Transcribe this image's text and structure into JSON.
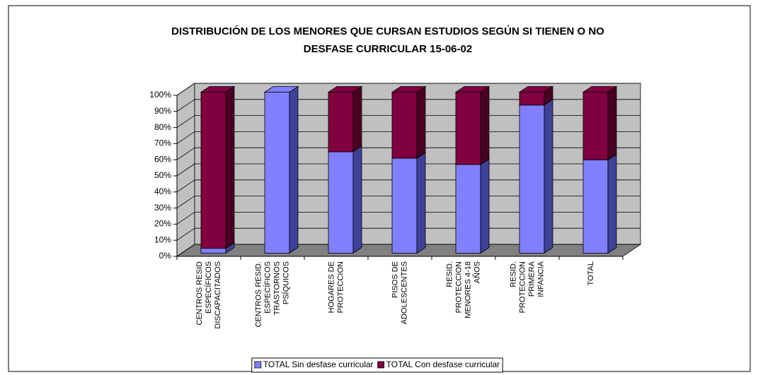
{
  "chart_data": {
    "type": "bar3d_stacked100",
    "title": [
      "DISTRIBUCIÓN DE LOS MENORES QUE CURSAN ESTUDIOS SEGÚN SI TIENEN O NO",
      "DESFASE CURRICULAR 15-06-02"
    ],
    "categories": [
      [
        "CENTROS RESID",
        "ESPECÍFICOS",
        "DISCAPACITADOS"
      ],
      [
        "CENTROS RESID.",
        "ESPECÍFICOS",
        "TRASTORNOS",
        "PSÍQUICOS"
      ],
      [
        "HOGARES DE",
        "PROTECCION"
      ],
      [
        "PISOS DE",
        "ADOLESCENTES"
      ],
      [
        "RESID.",
        "PROTECCION",
        "MENORES 4-18",
        "AÑOS"
      ],
      [
        "RESID.",
        "PROTECCION",
        "PRIMERA",
        "INFANCIA"
      ],
      [
        "TOTAL"
      ]
    ],
    "series": [
      {
        "name": "TOTAL Sin desfase curricular",
        "color": "#8080ff",
        "side": "#404099",
        "values": [
          3,
          100,
          63,
          59,
          55,
          92,
          58
        ]
      },
      {
        "name": "TOTAL Con desfase curricular",
        "color": "#800040",
        "side": "#4a0025",
        "values": [
          97,
          0,
          37,
          41,
          45,
          8,
          42
        ]
      }
    ],
    "ylim": [
      0,
      100
    ],
    "yticks": [
      {
        "value": 0,
        "label": "0%"
      },
      {
        "value": 10,
        "label": "10%"
      },
      {
        "value": 20,
        "label": "20%"
      },
      {
        "value": 30,
        "label": "30%"
      },
      {
        "value": 40,
        "label": "40%"
      },
      {
        "value": 50,
        "label": "50%"
      },
      {
        "value": 60,
        "label": "60%"
      },
      {
        "value": 70,
        "label": "70%"
      },
      {
        "value": 80,
        "label": "80%"
      },
      {
        "value": 90,
        "label": "90%"
      },
      {
        "value": 100,
        "label": "100%"
      }
    ],
    "grid": true,
    "legend": "bottom"
  }
}
